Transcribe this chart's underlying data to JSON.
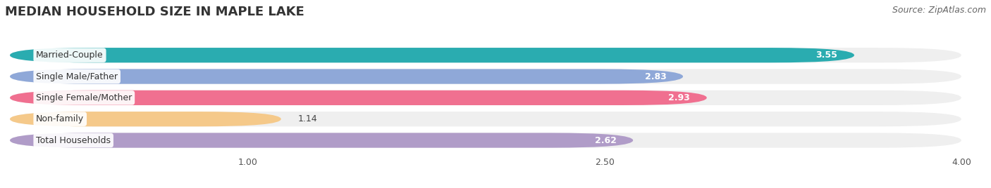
{
  "title": "MEDIAN HOUSEHOLD SIZE IN MAPLE LAKE",
  "source": "Source: ZipAtlas.com",
  "categories": [
    "Married-Couple",
    "Single Male/Father",
    "Single Female/Mother",
    "Non-family",
    "Total Households"
  ],
  "values": [
    3.55,
    2.83,
    2.93,
    1.14,
    2.62
  ],
  "bar_colors": [
    "#2aacb0",
    "#8fa8d8",
    "#f07090",
    "#f5c98a",
    "#b09cc8"
  ],
  "xlim": [
    0,
    4.0
  ],
  "xmin": 0.0,
  "xticks": [
    1.0,
    2.5,
    4.0
  ],
  "background_color": "#ffffff",
  "bar_bg_color": "#efefef",
  "title_fontsize": 13,
  "source_fontsize": 9,
  "label_fontsize": 9,
  "value_fontsize": 9
}
